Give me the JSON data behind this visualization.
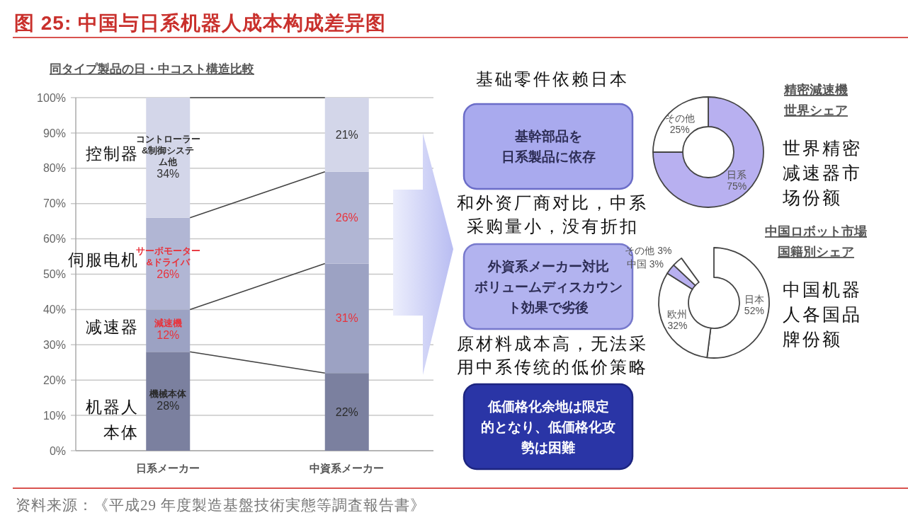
{
  "chart_data": [
    {
      "type": "bar",
      "title": "图 25: 中国与日系机器人成本构成差异图",
      "subtitle": "同タイプ製品の日・中コスト構造比較",
      "categories": [
        "日系メーカー",
        "中資系メーカー"
      ],
      "stacked": true,
      "series": [
        {
          "name": "機械本体",
          "color": "#7b809f",
          "values": [
            28,
            22
          ],
          "value_labels": [
            "28%",
            "22%"
          ]
        },
        {
          "name": "減速機",
          "color": "#9ca2c3",
          "values": [
            12,
            31
          ],
          "value_labels": [
            "12%",
            "31%"
          ]
        },
        {
          "name": "サーボモーター&ドライバ",
          "color": "#b1b6d4",
          "values": [
            26,
            26
          ],
          "value_labels": [
            "26%",
            "26%"
          ]
        },
        {
          "name": "コントローラー&制御システム他",
          "color": "#d3d6e9",
          "values": [
            34,
            21
          ],
          "value_labels": [
            "34%",
            "21%"
          ]
        }
      ],
      "ylim": [
        0,
        100
      ],
      "yticks": [
        {
          "value": 0,
          "label": "0%"
        },
        {
          "value": 10,
          "label": "10%"
        },
        {
          "value": 20,
          "label": "20%"
        },
        {
          "value": 30,
          "label": "30%"
        },
        {
          "value": 40,
          "label": "40%"
        },
        {
          "value": 50,
          "label": "50%"
        },
        {
          "value": 60,
          "label": "60%"
        },
        {
          "value": 70,
          "label": "70%"
        },
        {
          "value": 80,
          "label": "80%"
        },
        {
          "value": 90,
          "label": "90%"
        },
        {
          "value": 100,
          "label": "100%"
        }
      ],
      "grid": "y",
      "annotations": [
        "控制器",
        "伺服电机",
        "减速器",
        "机器人本体",
        "资料来源：《平成29 年度製造基盤技術実態等調査報告書》"
      ]
    },
    {
      "type": "other",
      "annotations": [
        "基础零件依赖日本",
        "基幹部品を日系製品に依存",
        "和外资厂商对比，中系采购量小，没有折扣",
        "外資系メーカー対比ボリュームディスカウント効果で劣後",
        "原材料成本高，无法采用中系传统的低价策略",
        "低価格化余地は限定的となり、低価格化攻勢は困難"
      ]
    },
    {
      "type": "donut",
      "title": "精密減速機世界シェア",
      "subtitle": "世界精密减速器市场份额",
      "categories": [
        "日系",
        "その他"
      ],
      "values": [
        75,
        25
      ],
      "colors": [
        "#b8b0f0",
        "#ffffff"
      ],
      "value_labels": [
        "75%",
        "25%"
      ]
    },
    {
      "type": "donut",
      "title": "中国ロボット市場国籍別シェア",
      "subtitle": "中国机器人各国品牌份额",
      "categories": [
        "日本",
        "欧州",
        "中国",
        "その他"
      ],
      "values": [
        52,
        32,
        3,
        3
      ],
      "colors": [
        "#ffffff",
        "#ffffff",
        "#b8b0f0",
        "#ffffff"
      ],
      "value_labels": [
        "52%",
        "32%",
        "3%",
        "3%"
      ]
    }
  ]
}
